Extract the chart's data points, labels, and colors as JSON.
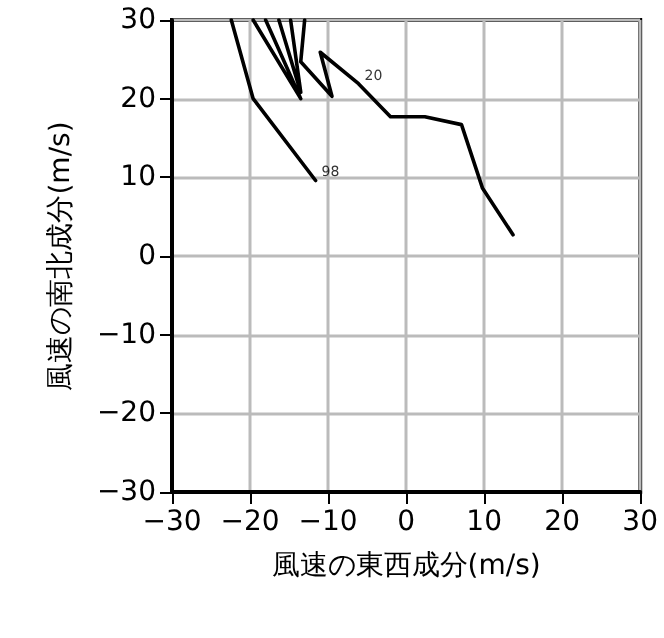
{
  "chart_data": {
    "type": "line",
    "xlabel": "風速の東西成分(m/s)",
    "ylabel": "風速の南北成分(m/s)",
    "series": [
      {
        "color": "#000000",
        "x": [
          -11.6,
          -19.6,
          -22.4,
          -21,
          -19.6,
          -13.5,
          -18,
          -17,
          -16.3,
          -13.5,
          -14.8,
          -14,
          -13,
          -13.5,
          -9.5,
          -11.0,
          -6.1,
          -2.0,
          2.4,
          7.1,
          9.8,
          13.7
        ],
        "values": [
          9.6,
          20,
          30,
          null,
          30,
          20,
          30,
          null,
          30,
          20.8,
          30,
          null,
          30,
          24.7,
          20.3,
          25.9,
          21.9,
          17.7,
          17.7,
          16.7,
          8.6,
          2.7
        ]
      }
    ],
    "annotations": [
      {
        "text": "98",
        "x": -11.6,
        "y": 9.6
      },
      {
        "text": "20",
        "x": -6.1,
        "y": 21.9
      }
    ],
    "xlim": [
      -30,
      30
    ],
    "xticks": [
      -30,
      -20,
      -10,
      0,
      10,
      20,
      30
    ],
    "ylim": [
      -30,
      30
    ],
    "yticks": [
      -30,
      -20,
      -10,
      0,
      10,
      20,
      30
    ],
    "grid": true,
    "marker": "none",
    "line_style": "solid"
  }
}
